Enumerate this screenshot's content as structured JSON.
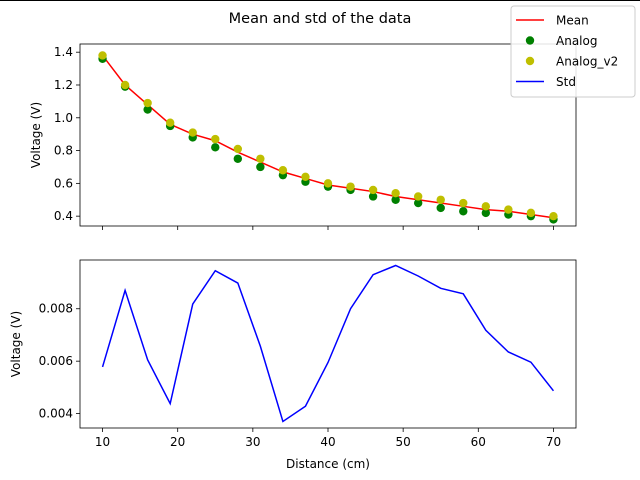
{
  "chart_data": {
    "type": "line",
    "title": "Mean and std of the data",
    "colors": {
      "mean": "#ff0000",
      "analog": "#008000",
      "analog_v2": "#bfbf00",
      "std": "#0000ff"
    },
    "legend": {
      "placement": "top-right",
      "entries": [
        {
          "label": "Mean",
          "kind": "line",
          "color": "#ff0000"
        },
        {
          "label": "Analog",
          "kind": "marker",
          "color": "#008000"
        },
        {
          "label": "Analog_v2",
          "kind": "marker",
          "color": "#bfbf00"
        },
        {
          "label": "Std",
          "kind": "line",
          "color": "#0000ff"
        }
      ]
    },
    "x": [
      10,
      13,
      16,
      19,
      22,
      25,
      28,
      31,
      34,
      37,
      40,
      43,
      46,
      49,
      52,
      55,
      58,
      61,
      64,
      67,
      70
    ],
    "xlabel": "Distance (cm)",
    "xlim": [
      7,
      73
    ],
    "xticks": [
      10,
      20,
      30,
      40,
      50,
      60,
      70
    ],
    "top": {
      "ylabel": "Voltage (V)",
      "ylim": [
        0.34,
        1.45
      ],
      "yticks": [
        0.4,
        0.6,
        0.8,
        1.0,
        1.2,
        1.4
      ],
      "yticklabels": [
        "0.4",
        "0.6",
        "0.8",
        "1.0",
        "1.2",
        "1.4"
      ],
      "series": [
        {
          "name": "Mean",
          "style": "line",
          "color": "#ff0000",
          "values": [
            1.38,
            1.2,
            1.08,
            0.96,
            0.9,
            0.86,
            0.79,
            0.73,
            0.67,
            0.63,
            0.59,
            0.57,
            0.55,
            0.52,
            0.5,
            0.48,
            0.46,
            0.44,
            0.43,
            0.41,
            0.39
          ]
        },
        {
          "name": "Analog",
          "style": "scatter",
          "color": "#008000",
          "values": [
            1.36,
            1.19,
            1.05,
            0.95,
            0.88,
            0.82,
            0.75,
            0.7,
            0.65,
            0.61,
            0.58,
            0.56,
            0.52,
            0.5,
            0.48,
            0.45,
            0.43,
            0.42,
            0.41,
            0.4,
            0.38
          ]
        },
        {
          "name": "Analog_v2",
          "style": "scatter",
          "color": "#bfbf00",
          "values": [
            1.38,
            1.2,
            1.09,
            0.97,
            0.91,
            0.87,
            0.81,
            0.75,
            0.68,
            0.64,
            0.6,
            0.58,
            0.56,
            0.54,
            0.52,
            0.5,
            0.48,
            0.46,
            0.44,
            0.42,
            0.4
          ]
        }
      ]
    },
    "bottom": {
      "ylabel": "Voltage (V)",
      "ylim": [
        0.00345,
        0.00986
      ],
      "yticks": [
        0.004,
        0.006,
        0.008
      ],
      "yticklabels": [
        "0.004",
        "0.006",
        "0.008"
      ],
      "series": [
        {
          "name": "Std",
          "style": "line",
          "color": "#0000ff",
          "values": [
            0.00578,
            0.0087,
            0.00605,
            0.00438,
            0.00818,
            0.00945,
            0.00898,
            0.00657,
            0.0037,
            0.00428,
            0.00595,
            0.008,
            0.0093,
            0.00965,
            0.00925,
            0.00878,
            0.00857,
            0.00718,
            0.00635,
            0.00596,
            0.00487
          ]
        }
      ]
    }
  }
}
